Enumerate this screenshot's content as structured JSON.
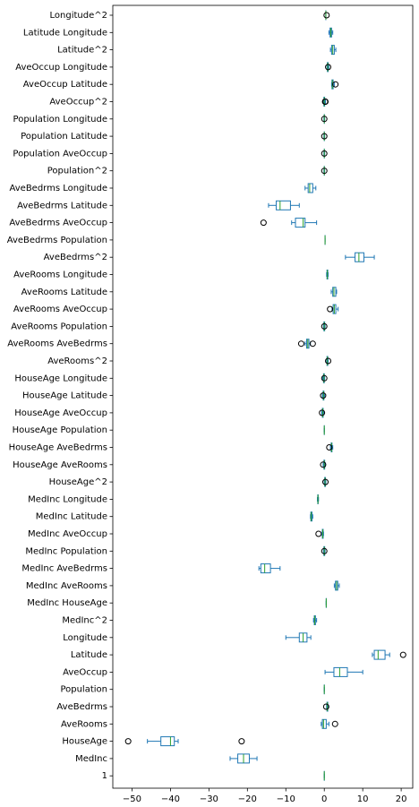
{
  "chart_data": {
    "type": "boxplot",
    "orientation": "horizontal",
    "title": "",
    "xlabel": "",
    "ylabel": "",
    "xlim": [
      -55,
      23
    ],
    "x_ticks": [
      -50,
      -40,
      -30,
      -20,
      -10,
      0,
      10,
      20
    ],
    "grid": false,
    "colors": {
      "box": "#1f77b4",
      "median": "#2ca02c",
      "whisker": "#1f77b4",
      "outlier": "#000000"
    },
    "categories": [
      "Longitude^2",
      "Latitude Longitude",
      "Latitude^2",
      "AveOccup Longitude",
      "AveOccup Latitude",
      "AveOccup^2",
      "Population Longitude",
      "Population Latitude",
      "Population AveOccup",
      "Population^2",
      "AveBedrms Longitude",
      "AveBedrms Latitude",
      "AveBedrms AveOccup",
      "AveBedrms Population",
      "AveBedrms^2",
      "AveRooms Longitude",
      "AveRooms Latitude",
      "AveRooms AveOccup",
      "AveRooms Population",
      "AveRooms AveBedrms",
      "AveRooms^2",
      "HouseAge Longitude",
      "HouseAge Latitude",
      "HouseAge AveOccup",
      "HouseAge Population",
      "HouseAge AveBedrms",
      "HouseAge AveRooms",
      "HouseAge^2",
      "MedInc Longitude",
      "MedInc Latitude",
      "MedInc AveOccup",
      "MedInc Population",
      "MedInc AveBedrms",
      "MedInc AveRooms",
      "MedInc HouseAge",
      "MedInc^2",
      "Longitude",
      "Latitude",
      "AveOccup",
      "Population",
      "AveBedrms",
      "AveRooms",
      "HouseAge",
      "MedInc",
      "1"
    ],
    "boxes": [
      {
        "wmin": 0.4,
        "q1": 0.4,
        "median": 0.4,
        "q3": 0.4,
        "wmax": 0.4,
        "outliers": [
          0.6
        ]
      },
      {
        "wmin": 1.2,
        "q1": 1.5,
        "median": 1.7,
        "q3": 1.9,
        "wmax": 2.2,
        "outliers": []
      },
      {
        "wmin": 1.6,
        "q1": 1.9,
        "median": 2.2,
        "q3": 2.6,
        "wmax": 3.0,
        "outliers": []
      },
      {
        "wmin": 0.7,
        "q1": 0.8,
        "median": 0.9,
        "q3": 1.0,
        "wmax": 1.2,
        "outliers": [
          1.0
        ]
      },
      {
        "wmin": 1.9,
        "q1": 2.0,
        "median": 2.1,
        "q3": 2.3,
        "wmax": 2.6,
        "outliers": [
          2.9
        ]
      },
      {
        "wmin": -0.3,
        "q1": -0.1,
        "median": 0.0,
        "q3": 0.1,
        "wmax": 0.3,
        "outliers": [
          0.2,
          0.3
        ]
      },
      {
        "wmin": -0.1,
        "q1": 0.0,
        "median": 0.0,
        "q3": 0.0,
        "wmax": 0.1,
        "outliers": [
          0.0
        ]
      },
      {
        "wmin": -0.1,
        "q1": 0.0,
        "median": 0.0,
        "q3": 0.0,
        "wmax": 0.1,
        "outliers": [
          0.0
        ]
      },
      {
        "wmin": -0.1,
        "q1": 0.0,
        "median": 0.0,
        "q3": 0.0,
        "wmax": 0.1,
        "outliers": [
          0.0
        ]
      },
      {
        "wmin": -0.1,
        "q1": 0.0,
        "median": 0.0,
        "q3": 0.0,
        "wmax": 0.1,
        "outliers": [
          0.0
        ]
      },
      {
        "wmin": -5.0,
        "q1": -4.2,
        "median": -3.8,
        "q3": -3.0,
        "wmax": -2.2,
        "outliers": []
      },
      {
        "wmin": -14.5,
        "q1": -12.5,
        "median": -11.5,
        "q3": -8.8,
        "wmax": -6.5,
        "outliers": []
      },
      {
        "wmin": -8.5,
        "q1": -7.5,
        "median": -5.5,
        "q3": -5.0,
        "wmax": -2.0,
        "outliers": [
          -15.8
        ]
      },
      {
        "wmin": 0.2,
        "q1": 0.2,
        "median": 0.2,
        "q3": 0.2,
        "wmax": 0.2,
        "outliers": []
      },
      {
        "wmin": 5.5,
        "q1": 8.0,
        "median": 9.0,
        "q3": 10.3,
        "wmax": 13.0,
        "outliers": []
      },
      {
        "wmin": 0.6,
        "q1": 0.7,
        "median": 0.8,
        "q3": 0.9,
        "wmax": 1.0,
        "outliers": []
      },
      {
        "wmin": 1.8,
        "q1": 2.2,
        "median": 2.5,
        "q3": 3.0,
        "wmax": 3.2,
        "outliers": []
      },
      {
        "wmin": 2.0,
        "q1": 2.3,
        "median": 2.6,
        "q3": 3.0,
        "wmax": 3.6,
        "outliers": [
          1.5
        ]
      },
      {
        "wmin": -0.2,
        "q1": -0.1,
        "median": 0.0,
        "q3": 0.1,
        "wmax": 0.2,
        "outliers": [
          0.0
        ]
      },
      {
        "wmin": -5.0,
        "q1": -4.6,
        "median": -4.3,
        "q3": -4.0,
        "wmax": -3.6,
        "outliers": [
          -6.0,
          -3.0
        ]
      },
      {
        "wmin": 0.6,
        "q1": 0.7,
        "median": 0.8,
        "q3": 0.9,
        "wmax": 1.0,
        "outliers": [
          1.0
        ]
      },
      {
        "wmin": -0.4,
        "q1": -0.2,
        "median": -0.1,
        "q3": 0.0,
        "wmax": 0.1,
        "outliers": [
          0.0
        ]
      },
      {
        "wmin": -0.5,
        "q1": -0.3,
        "median": -0.2,
        "q3": -0.1,
        "wmax": 0.1,
        "outliers": [
          -0.3
        ]
      },
      {
        "wmin": -0.7,
        "q1": -0.5,
        "median": -0.4,
        "q3": -0.3,
        "wmax": -0.1,
        "outliers": [
          -0.6
        ]
      },
      {
        "wmin": 0.0,
        "q1": 0.0,
        "median": 0.0,
        "q3": 0.0,
        "wmax": 0.0,
        "outliers": []
      },
      {
        "wmin": 1.6,
        "q1": 1.8,
        "median": 1.9,
        "q3": 2.0,
        "wmax": 2.2,
        "outliers": [
          1.3
        ]
      },
      {
        "wmin": -0.3,
        "q1": -0.1,
        "median": 0.0,
        "q3": 0.1,
        "wmax": 0.3,
        "outliers": [
          -0.3
        ]
      },
      {
        "wmin": 0.0,
        "q1": 0.1,
        "median": 0.2,
        "q3": 0.3,
        "wmax": 0.4,
        "outliers": [
          0.3
        ]
      },
      {
        "wmin": -1.8,
        "q1": -1.7,
        "median": -1.65,
        "q3": -1.6,
        "wmax": -1.5,
        "outliers": []
      },
      {
        "wmin": -3.6,
        "q1": -3.5,
        "median": -3.4,
        "q3": -3.2,
        "wmax": -3.0,
        "outliers": []
      },
      {
        "wmin": -0.6,
        "q1": -0.5,
        "median": -0.4,
        "q3": -0.3,
        "wmax": -0.2,
        "outliers": [
          -1.5
        ]
      },
      {
        "wmin": -0.2,
        "q1": -0.1,
        "median": 0.0,
        "q3": 0.1,
        "wmax": 0.2,
        "outliers": [
          0.0
        ]
      },
      {
        "wmin": -17.0,
        "q1": -16.5,
        "median": -15.5,
        "q3": -14.0,
        "wmax": -11.5,
        "outliers": []
      },
      {
        "wmin": 2.6,
        "q1": 2.9,
        "median": 3.2,
        "q3": 3.5,
        "wmax": 3.9,
        "outliers": []
      },
      {
        "wmin": 0.5,
        "q1": 0.5,
        "median": 0.5,
        "q3": 0.5,
        "wmax": 0.5,
        "outliers": []
      },
      {
        "wmin": -2.8,
        "q1": -2.6,
        "median": -2.5,
        "q3": -2.3,
        "wmax": -2.0,
        "outliers": []
      },
      {
        "wmin": -10.0,
        "q1": -6.5,
        "median": -5.5,
        "q3": -4.5,
        "wmax": -3.5,
        "outliers": []
      },
      {
        "wmin": 12.5,
        "q1": 13.0,
        "median": 14.0,
        "q3": 15.8,
        "wmax": 17.0,
        "outliers": [
          20.5
        ]
      },
      {
        "wmin": 0.2,
        "q1": 2.5,
        "median": 4.0,
        "q3": 6.0,
        "wmax": 10.0,
        "outliers": []
      },
      {
        "wmin": 0.0,
        "q1": 0.0,
        "median": 0.0,
        "q3": 0.0,
        "wmax": 0.0,
        "outliers": []
      },
      {
        "wmin": 0.6,
        "q1": 0.7,
        "median": 0.8,
        "q3": 0.9,
        "wmax": 1.0,
        "outliers": [
          0.5
        ]
      },
      {
        "wmin": -0.8,
        "q1": -0.5,
        "median": -0.2,
        "q3": 0.5,
        "wmax": 1.2,
        "outliers": [
          2.8
        ]
      },
      {
        "wmin": -46.0,
        "q1": -42.5,
        "median": -40.0,
        "q3": -39.0,
        "wmax": -38.0,
        "outliers": [
          -51.0,
          -21.5
        ]
      },
      {
        "wmin": -24.5,
        "q1": -22.5,
        "median": -21.0,
        "q3": -19.5,
        "wmax": -17.5,
        "outliers": []
      },
      {
        "wmin": 0.0,
        "q1": 0.0,
        "median": 0.0,
        "q3": 0.0,
        "wmax": 0.0,
        "outliers": []
      }
    ]
  }
}
